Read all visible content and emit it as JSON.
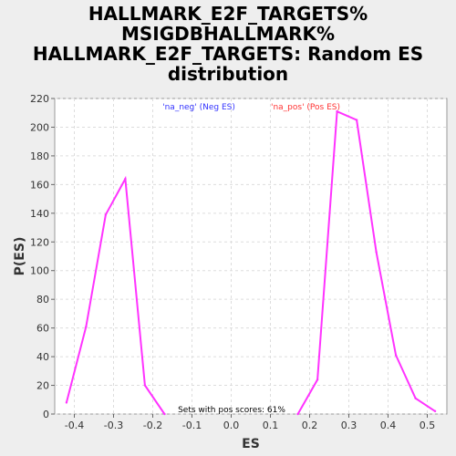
{
  "chart_data": {
    "type": "line",
    "title_lines": [
      "HALLMARK_E2F_TARGETS%",
      "MSIGDBHALLMARK%",
      "HALLMARK_E2F_TARGETS: Random ES",
      "distribution"
    ],
    "xlabel": "ES",
    "ylabel": "P(ES)",
    "xlim": [
      -0.45,
      0.55
    ],
    "ylim": [
      0,
      220
    ],
    "x_ticks": [
      -0.4,
      -0.3,
      -0.2,
      -0.1,
      0.0,
      0.1,
      0.2,
      0.3,
      0.4,
      0.5
    ],
    "x_tick_labels": [
      "-0.4",
      "-0.3",
      "-0.2",
      "-0.1",
      "0.0",
      "0.1",
      "0.2",
      "0.3",
      "0.4",
      "0.5"
    ],
    "y_ticks": [
      0,
      20,
      40,
      60,
      80,
      100,
      120,
      140,
      160,
      180,
      200,
      220
    ],
    "y_tick_labels": [
      "0",
      "20",
      "40",
      "60",
      "80",
      "100",
      "120",
      "140",
      "160",
      "180",
      "200",
      "220"
    ],
    "grid": true,
    "line_color": "#ff33ff",
    "series": [
      {
        "x": [
          -0.42,
          -0.37,
          -0.32,
          -0.27,
          -0.22,
          -0.17
        ],
        "y": [
          8,
          61,
          139,
          164,
          20,
          0
        ]
      },
      {
        "x": [
          0.17,
          0.22,
          0.27,
          0.32,
          0.37,
          0.42,
          0.47,
          0.52
        ],
        "y": [
          0,
          24,
          211,
          205,
          113,
          41,
          11,
          2
        ]
      }
    ],
    "legend": [
      {
        "label": "'na_neg' (Neg ES)",
        "color": "#3333ff"
      },
      {
        "label": "'na_pos' (Pos ES)",
        "color": "#ff3333"
      }
    ],
    "annotation": "Sets with pos scores: 61%"
  }
}
